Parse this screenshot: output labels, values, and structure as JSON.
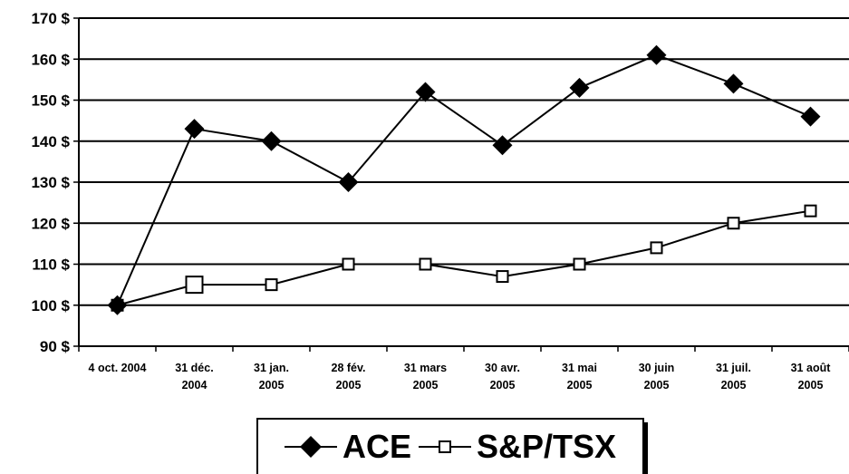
{
  "chart_data": {
    "type": "line",
    "categories": [
      [
        "4 oct. 2004"
      ],
      [
        "31 déc.",
        "2004"
      ],
      [
        "31 jan.",
        "2005"
      ],
      [
        "28 fév.",
        "2005"
      ],
      [
        "31 mars",
        "2005"
      ],
      [
        "30 avr.",
        "2005"
      ],
      [
        "31 mai",
        "2005"
      ],
      [
        "30 juin",
        "2005"
      ],
      [
        "31 juil.",
        "2005"
      ],
      [
        "31 août",
        "2005"
      ]
    ],
    "y_ticks": [
      "90 $",
      "100 $",
      "110 $",
      "120 $",
      "130 $",
      "140 $",
      "150 $",
      "160 $",
      "170 $"
    ],
    "ylim": [
      90,
      170
    ],
    "ytick_step": 10,
    "grid": "horizontal",
    "legend_position": "bottom-center",
    "series": [
      {
        "name": "ACE",
        "marker": "filled-diamond",
        "color": "#000000",
        "values": [
          100,
          143,
          140,
          130,
          152,
          139,
          153,
          161,
          154,
          146
        ]
      },
      {
        "name": "S&P/TSX",
        "marker": "open-square",
        "color": "#000000",
        "values": [
          100,
          105,
          105,
          110,
          110,
          107,
          110,
          114,
          120,
          123
        ]
      }
    ]
  }
}
